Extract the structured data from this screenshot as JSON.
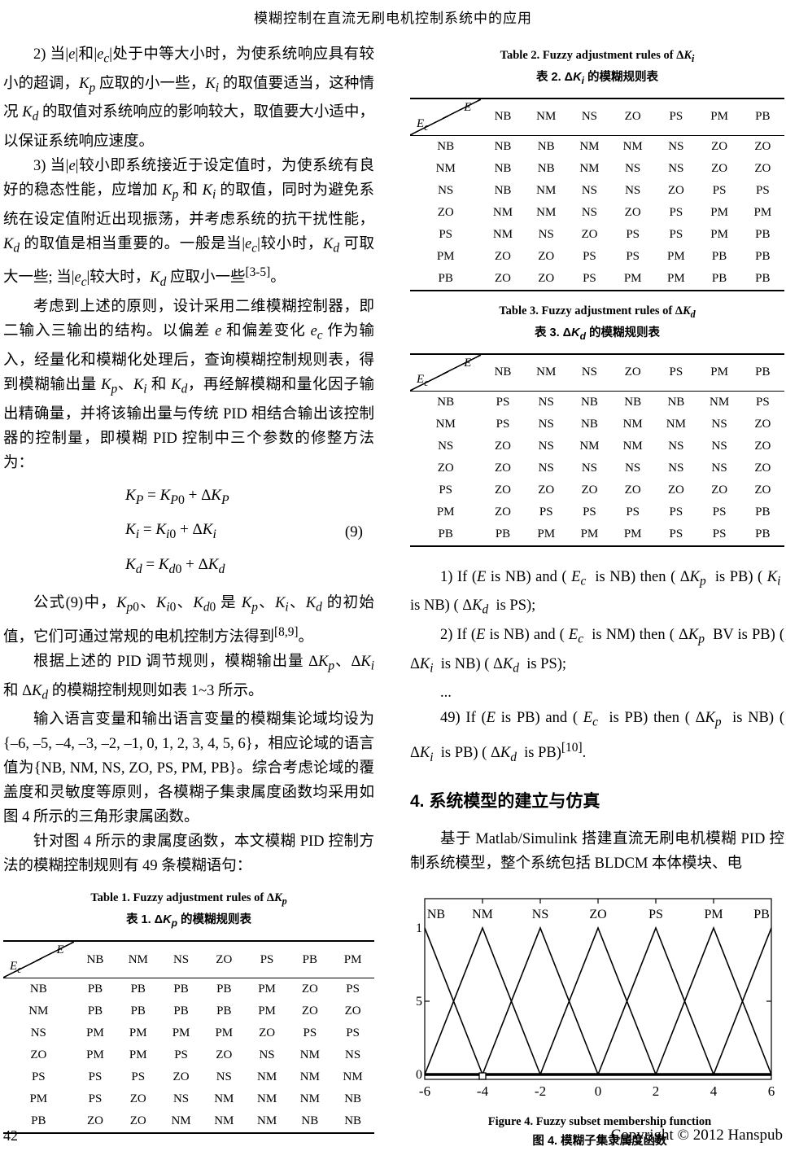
{
  "page": {
    "header": "模糊控制在直流无刷电机控制系统中的应用",
    "footer_page": "42",
    "footer_copyright": "Copyright © 2012 Hanspub"
  },
  "left": {
    "p2_html": "2) 当|<i>e</i>|和|<i>e</i><sub><i>c</i></sub>|处于中等大小时，为使系统响应具有较小的超调，<i>K</i><sub><i>p</i></sub> 应取的小一些，<i>K</i><sub><i>i</i></sub> 的取值要适当，这种情况 <i>K</i><sub><i>d</i></sub> 的取值对系统响应的影响较大，取值要大小适中，以保证系统响应速度。",
    "p3_html": "3) 当|<i>e</i>|较小即系统接近于设定值时，为使系统有良好的稳态性能，应增加 <i>K</i><sub><i>p</i></sub> 和 <i>K</i><sub><i>i</i></sub> 的取值，同时为避免系统在设定值附近出现振荡，并考虑系统的抗干扰性能，<i>K</i><sub><i>d</i></sub> 的取值是相当重要的。一般是当|<i>e</i><sub><i>c</i></sub>|较小时，<i>K</i><sub><i>d</i></sub> 可取大一些; 当|<i>e</i><sub><i>c</i></sub>|较大时，<i>K</i><sub><i>d</i></sub> 应取小一些<sup>[3-5]</sup>。",
    "p4_html": "考虑到上述的原则，设计采用二维模糊控制器，即二输入三输出的结构。以偏差 <i>e</i> 和偏差变化 <i>e</i><sub><i>c</i></sub> 作为输入，经量化和模糊化处理后，查询模糊控制规则表，得到模糊输出量 <i>K</i><sub><i>p</i></sub>、<i>K</i><sub><i>i</i></sub> 和 <i>K</i><sub><i>d</i></sub>，再经解模糊和量化因子输出精确量，并将该输出量与传统 PID 相结合输出该控制器的控制量，即模糊 PID 控制中三个参数的修整方法为：",
    "eq1_html": "<i>K</i><sub><i>P</i></sub> = <i>K</i><sub><i>P</i>0</sub> + Δ<i>K</i><sub><i>P</i></sub>",
    "eq2_html": "<i>K</i><sub><i>i</i></sub> = <i>K</i><sub><i>i</i>0</sub> + Δ<i>K</i><sub><i>i</i></sub>",
    "eq3_html": "<i>K</i><sub><i>d</i></sub> = <i>K</i><sub><i>d</i>0</sub> + Δ<i>K</i><sub><i>d</i></sub>",
    "eq_number": "(9)",
    "p5_html": "公式(9)中，<i>K</i><sub><i>p</i>0</sub>、<i>K</i><sub><i>i</i>0</sub>、<i>K</i><sub><i>d</i>0</sub> 是 <i>K</i><sub><i>p</i></sub>、<i>K</i><sub><i>i</i></sub>、<i>K</i><sub><i>d</i></sub> 的初始值，它们可通过常规的电机控制方法得到<sup>[8,9]</sup>。",
    "p6_html": "根据上述的 PID 调节规则，模糊输出量 Δ<i>K</i><sub><i>p</i></sub>、Δ<i>K</i><sub><i>i</i></sub> 和 Δ<i>K</i><sub><i>d</i></sub> 的模糊控制规则如表 1~3 所示。",
    "p7_html": "输入语言变量和输出语言变量的模糊集论域均设为{–6, –5, –4, –3, –2, –1, 0, 1, 2, 3, 4, 5, 6}，相应论域的语言值为{NB, NM, NS, ZO, PS, PM, PB}。综合考虑论域的覆盖度和灵敏度等原则，各模糊子集隶属度函数均采用如图 4 所示的三角形隶属函数。",
    "p8_html": "针对图 4 所示的隶属度函数，本文模糊 PID 控制方法的模糊控制规则有 49 条模糊语句："
  },
  "right": {
    "rule1_html": "1) If (<i>E</i> is NB) and ( <i>E</i><sub><i>c</i></sub>&nbsp; is NB) then ( Δ<i>K</i><sub><i>p</i></sub>&nbsp; is PB) ( <i>K</i><sub><i>i</i></sub>&nbsp; is NB) ( Δ<i>K</i><sub><i>d</i></sub>&nbsp; is PS);",
    "rule2_html": "2) If (<i>E</i> is NB) and ( <i>E</i><sub><i>c</i></sub>&nbsp; is NM) then ( Δ<i>K</i><sub><i>p</i></sub>&nbsp; BV is PB) ( Δ<i>K</i><sub><i>i</i></sub>&nbsp; is NB) ( Δ<i>K</i><sub><i>d</i></sub>&nbsp; is PS);",
    "ellipsis": "...",
    "rule49_html": "49) If (<i>E</i> is PB) and ( <i>E</i><sub><i>c</i></sub>&nbsp; is PB) then ( Δ<i>K</i><sub><i>p</i></sub>&nbsp; is NB) ( Δ<i>K</i><sub><i>i</i></sub>&nbsp; is PB) ( Δ<i>K</i><sub><i>d</i></sub>&nbsp; is PB)<sup>[10]</sup>.",
    "section_heading": "4. 系统模型的建立与仿真",
    "p_matlab_html": "基于 Matlab/Simulink 搭建直流无刷电机模糊 PID 控制系统模型，整个系统包括 BLDCM 本体模块、电",
    "fig_caption_en": "Figure 4. Fuzzy subset membership function",
    "fig_caption_zh": "图 4.  模糊子集隶属度函数"
  },
  "tables": [
    {
      "title_en_html": "Table 1. Fuzzy adjustment rules of Δ<i>K</i><sub><i>p</i></sub>",
      "title_zh_html": "表 1.  Δ<i>K</i><sub><i>p</i></sub> 的模糊规则表",
      "corner": {
        "top_html": "<i>E</i>",
        "bottom_html": "<i>E</i><sub><i>c</i></sub>"
      },
      "col_headers": [
        "NB",
        "NM",
        "NS",
        "ZO",
        "PS",
        "PB",
        "PM"
      ],
      "rows": [
        {
          "label": "NB",
          "cells": [
            "PB",
            "PB",
            "PB",
            "PB",
            "PM",
            "ZO",
            "PS"
          ]
        },
        {
          "label": "NM",
          "cells": [
            "PB",
            "PB",
            "PB",
            "PB",
            "PM",
            "ZO",
            "ZO"
          ]
        },
        {
          "label": "NS",
          "cells": [
            "PM",
            "PM",
            "PM",
            "PM",
            "ZO",
            "PS",
            "PS"
          ]
        },
        {
          "label": "ZO",
          "cells": [
            "PM",
            "PM",
            "PS",
            "ZO",
            "NS",
            "NM",
            "NS"
          ]
        },
        {
          "label": "PS",
          "cells": [
            "PS",
            "PS",
            "ZO",
            "NS",
            "NM",
            "NM",
            "NM"
          ]
        },
        {
          "label": "PM",
          "cells": [
            "PS",
            "ZO",
            "NS",
            "NM",
            "NM",
            "NM",
            "NB"
          ]
        },
        {
          "label": "PB",
          "cells": [
            "ZO",
            "ZO",
            "NM",
            "NM",
            "NM",
            "NB",
            "NB"
          ]
        }
      ]
    },
    {
      "title_en_html": "Table 2. Fuzzy adjustment rules of Δ<i>K</i><sub><i>i</i></sub>",
      "title_zh_html": "表 2. Δ<i>K</i><sub><i>i</i></sub> 的模糊规则表",
      "corner": {
        "top_html": "<i>E</i>",
        "bottom_html": "<i>E</i><sub><i>c</i></sub>"
      },
      "col_headers": [
        "NB",
        "NM",
        "NS",
        "ZO",
        "PS",
        "PM",
        "PB"
      ],
      "rows": [
        {
          "label": "NB",
          "cells": [
            "NB",
            "NB",
            "NM",
            "NM",
            "NS",
            "ZO",
            "ZO"
          ]
        },
        {
          "label": "NM",
          "cells": [
            "NB",
            "NB",
            "NM",
            "NS",
            "NS",
            "ZO",
            "ZO"
          ]
        },
        {
          "label": "NS",
          "cells": [
            "NB",
            "NM",
            "NS",
            "NS",
            "ZO",
            "PS",
            "PS"
          ]
        },
        {
          "label": "ZO",
          "cells": [
            "NM",
            "NM",
            "NS",
            "ZO",
            "PS",
            "PM",
            "PM"
          ]
        },
        {
          "label": "PS",
          "cells": [
            "NM",
            "NS",
            "ZO",
            "PS",
            "PS",
            "PM",
            "PB"
          ]
        },
        {
          "label": "PM",
          "cells": [
            "ZO",
            "ZO",
            "PS",
            "PS",
            "PM",
            "PB",
            "PB"
          ]
        },
        {
          "label": "PB",
          "cells": [
            "ZO",
            "ZO",
            "PS",
            "PM",
            "PM",
            "PB",
            "PB"
          ]
        }
      ]
    },
    {
      "title_en_html": "Table 3. Fuzzy adjustment rules of Δ<i>K</i><sub><i>d</i></sub>",
      "title_zh_html": "表 3. Δ<i>K</i><sub><i>d</i></sub> 的模糊规则表",
      "corner": {
        "top_html": "<i>E</i>",
        "bottom_html": "<i>E</i><sub><i>c</i></sub>"
      },
      "col_headers": [
        "NB",
        "NM",
        "NS",
        "ZO",
        "PS",
        "PM",
        "PB"
      ],
      "rows": [
        {
          "label": "NB",
          "cells": [
            "PS",
            "NS",
            "NB",
            "NB",
            "NB",
            "NM",
            "PS"
          ]
        },
        {
          "label": "NM",
          "cells": [
            "PS",
            "NS",
            "NB",
            "NM",
            "NM",
            "NS",
            "ZO"
          ]
        },
        {
          "label": "NS",
          "cells": [
            "ZO",
            "NS",
            "NM",
            "NM",
            "NS",
            "NS",
            "ZO"
          ]
        },
        {
          "label": "ZO",
          "cells": [
            "ZO",
            "NS",
            "NS",
            "NS",
            "NS",
            "NS",
            "ZO"
          ]
        },
        {
          "label": "PS",
          "cells": [
            "ZO",
            "ZO",
            "ZO",
            "ZO",
            "ZO",
            "ZO",
            "ZO"
          ]
        },
        {
          "label": "PM",
          "cells": [
            "ZO",
            "PS",
            "PS",
            "PS",
            "PS",
            "PS",
            "PB"
          ]
        },
        {
          "label": "PB",
          "cells": [
            "PB",
            "PM",
            "PM",
            "PM",
            "PS",
            "PS",
            "PB"
          ]
        }
      ]
    }
  ],
  "chart_data": {
    "type": "line",
    "title": "Fuzzy subset membership function",
    "xlim": [
      -6,
      6
    ],
    "ylim": [
      0,
      1
    ],
    "xticks": [
      -6,
      -4,
      -2,
      0,
      2,
      4,
      6
    ],
    "xtick_labels": [
      "-6",
      "-4",
      "-2",
      "0",
      "2",
      "4",
      "6"
    ],
    "yticks": [
      0,
      0.5,
      1
    ],
    "ytick_labels": [
      "0",
      "0.5",
      "1"
    ],
    "series": [
      {
        "name": "NB",
        "points": [
          [
            -6,
            1
          ],
          [
            -4,
            0
          ]
        ]
      },
      {
        "name": "NM",
        "points": [
          [
            -6,
            0
          ],
          [
            -4,
            1
          ],
          [
            -2,
            0
          ]
        ]
      },
      {
        "name": "NS",
        "points": [
          [
            -4,
            0
          ],
          [
            -2,
            1
          ],
          [
            0,
            0
          ]
        ]
      },
      {
        "name": "ZO",
        "points": [
          [
            -2,
            0
          ],
          [
            0,
            1
          ],
          [
            2,
            0
          ]
        ]
      },
      {
        "name": "PS",
        "points": [
          [
            0,
            0
          ],
          [
            2,
            1
          ],
          [
            4,
            0
          ]
        ]
      },
      {
        "name": "PM",
        "points": [
          [
            2,
            0
          ],
          [
            4,
            1
          ],
          [
            6,
            0
          ]
        ]
      },
      {
        "name": "PB",
        "points": [
          [
            4,
            0
          ],
          [
            6,
            1
          ]
        ]
      }
    ],
    "top_labels": [
      {
        "text": "NB",
        "x": -6
      },
      {
        "text": "NM",
        "x": -4
      },
      {
        "text": "NS",
        "x": -2
      },
      {
        "text": "ZO",
        "x": 0
      },
      {
        "text": "PS",
        "x": 2
      },
      {
        "text": "PM",
        "x": 4
      },
      {
        "text": "PB",
        "x": 6
      }
    ],
    "marker": {
      "shape": "square",
      "x": -4,
      "y": 0
    }
  }
}
